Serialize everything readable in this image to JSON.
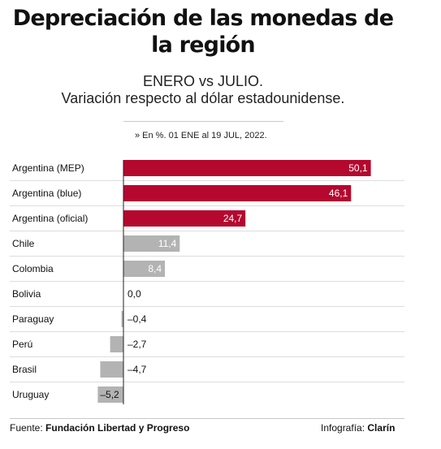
{
  "header": {
    "title": "Depreciación de las monedas de la región",
    "subtitle_line1": "ENERO vs JULIO.",
    "subtitle_line2": "Variación respecto al dólar estadounidense.",
    "note": "» En %. 01 ENE al 19 JUL, 2022."
  },
  "footer": {
    "source_label": "Fuente:",
    "source_name": "Fundación Libertad y Progreso",
    "credit_label": "Infografía:",
    "credit_name": "Clarín"
  },
  "colors": {
    "argentina": "#b5082f",
    "others": "#b3b3b3",
    "gridline": "#dddddd",
    "axis": "#222222"
  },
  "chart_data": {
    "type": "bar",
    "orientation": "horizontal",
    "title": "Depreciación de las monedas de la región",
    "categories": [
      "Argentina (MEP)",
      "Argentina (blue)",
      "Argentina (oficial)",
      "Chile",
      "Colombia",
      "Bolivia",
      "Paraguay",
      "Perú",
      "Brasil",
      "Uruguay"
    ],
    "values": [
      50.1,
      46.1,
      24.7,
      11.4,
      8.4,
      0.0,
      -0.4,
      -2.7,
      -4.7,
      -5.2
    ],
    "value_labels": [
      "50,1",
      "46,1",
      "24,7",
      "11,4",
      "8,4",
      "0,0",
      "–0,4",
      "–2,7",
      "–4,7",
      "–5,2"
    ],
    "highlight_categories": [
      "Argentina (MEP)",
      "Argentina (blue)",
      "Argentina (oficial)"
    ],
    "xlim": [
      -5.5,
      52
    ],
    "grid": true
  }
}
